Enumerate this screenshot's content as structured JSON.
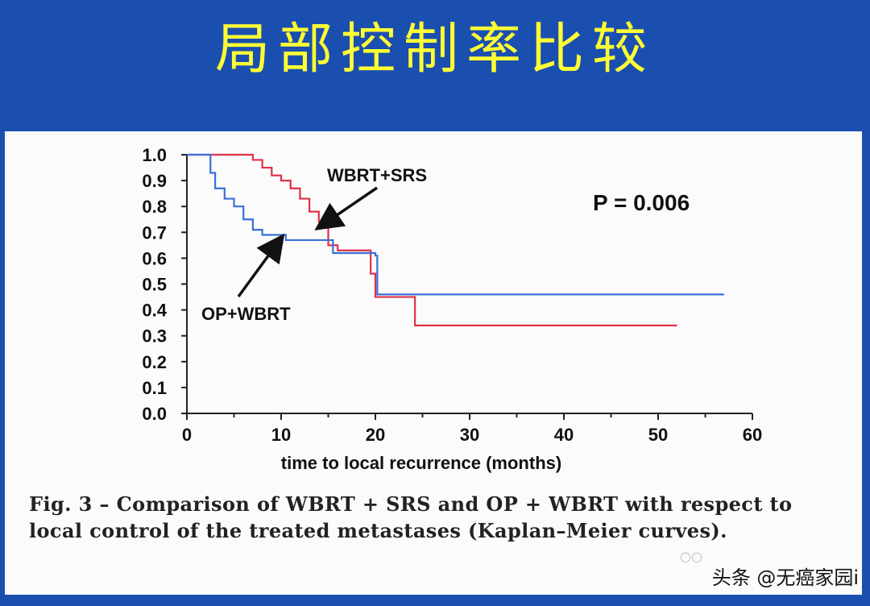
{
  "slide": {
    "title": "局部控制率比较",
    "caption": "Fig. 3 – Comparison of WBRT + SRS and OP + WBRT with respect to local control of the treated metastases (Kaplan–Meier curves).",
    "watermark": "头条 @无癌家园i",
    "colors": {
      "background": "#1a4fb0",
      "title": "#ffff33",
      "panel": "#fbfbfb"
    }
  },
  "chart_data": {
    "type": "line",
    "title": "",
    "xlabel": "time to local recurrence (months)",
    "ylabel": "",
    "xlim": [
      0,
      60
    ],
    "ylim": [
      0,
      1
    ],
    "x_ticks": [
      "0",
      "10",
      "20",
      "30",
      "40",
      "50",
      "60"
    ],
    "y_ticks": [
      "0.0",
      "0.1",
      "0.2",
      "0.3",
      "0.4",
      "0.5",
      "0.6",
      "0.7",
      "0.8",
      "0.9",
      "1.0"
    ],
    "grid": false,
    "series": [
      {
        "name": "WBRT+SRS",
        "color": "#e0304a",
        "step": true,
        "points": [
          [
            0,
            1.0
          ],
          [
            6,
            1.0
          ],
          [
            7,
            0.98
          ],
          [
            8,
            0.95
          ],
          [
            9,
            0.92
          ],
          [
            10,
            0.9
          ],
          [
            11,
            0.87
          ],
          [
            12,
            0.83
          ],
          [
            13,
            0.78
          ],
          [
            14,
            0.74
          ],
          [
            15,
            0.65
          ],
          [
            16,
            0.63
          ],
          [
            19,
            0.63
          ],
          [
            19.5,
            0.54
          ],
          [
            20,
            0.45
          ],
          [
            24,
            0.45
          ],
          [
            24.2,
            0.34
          ],
          [
            52,
            0.34
          ]
        ]
      },
      {
        "name": "OP+WBRT",
        "color": "#3a6fd8",
        "step": true,
        "points": [
          [
            0,
            1.0
          ],
          [
            2,
            1.0
          ],
          [
            2.5,
            0.93
          ],
          [
            3,
            0.87
          ],
          [
            4,
            0.83
          ],
          [
            5,
            0.8
          ],
          [
            6,
            0.75
          ],
          [
            7,
            0.71
          ],
          [
            8,
            0.69
          ],
          [
            10,
            0.69
          ],
          [
            10.5,
            0.67
          ],
          [
            15,
            0.67
          ],
          [
            15.5,
            0.62
          ],
          [
            19,
            0.62
          ],
          [
            20,
            0.61
          ],
          [
            20.2,
            0.46
          ],
          [
            57,
            0.46
          ]
        ]
      }
    ],
    "annotations": [
      {
        "text": "WBRT+SRS",
        "arrow_to_series": "WBRT+SRS"
      },
      {
        "text": "OP+WBRT",
        "arrow_to_series": "OP+WBRT"
      },
      {
        "text": "P = 0.006"
      }
    ]
  }
}
